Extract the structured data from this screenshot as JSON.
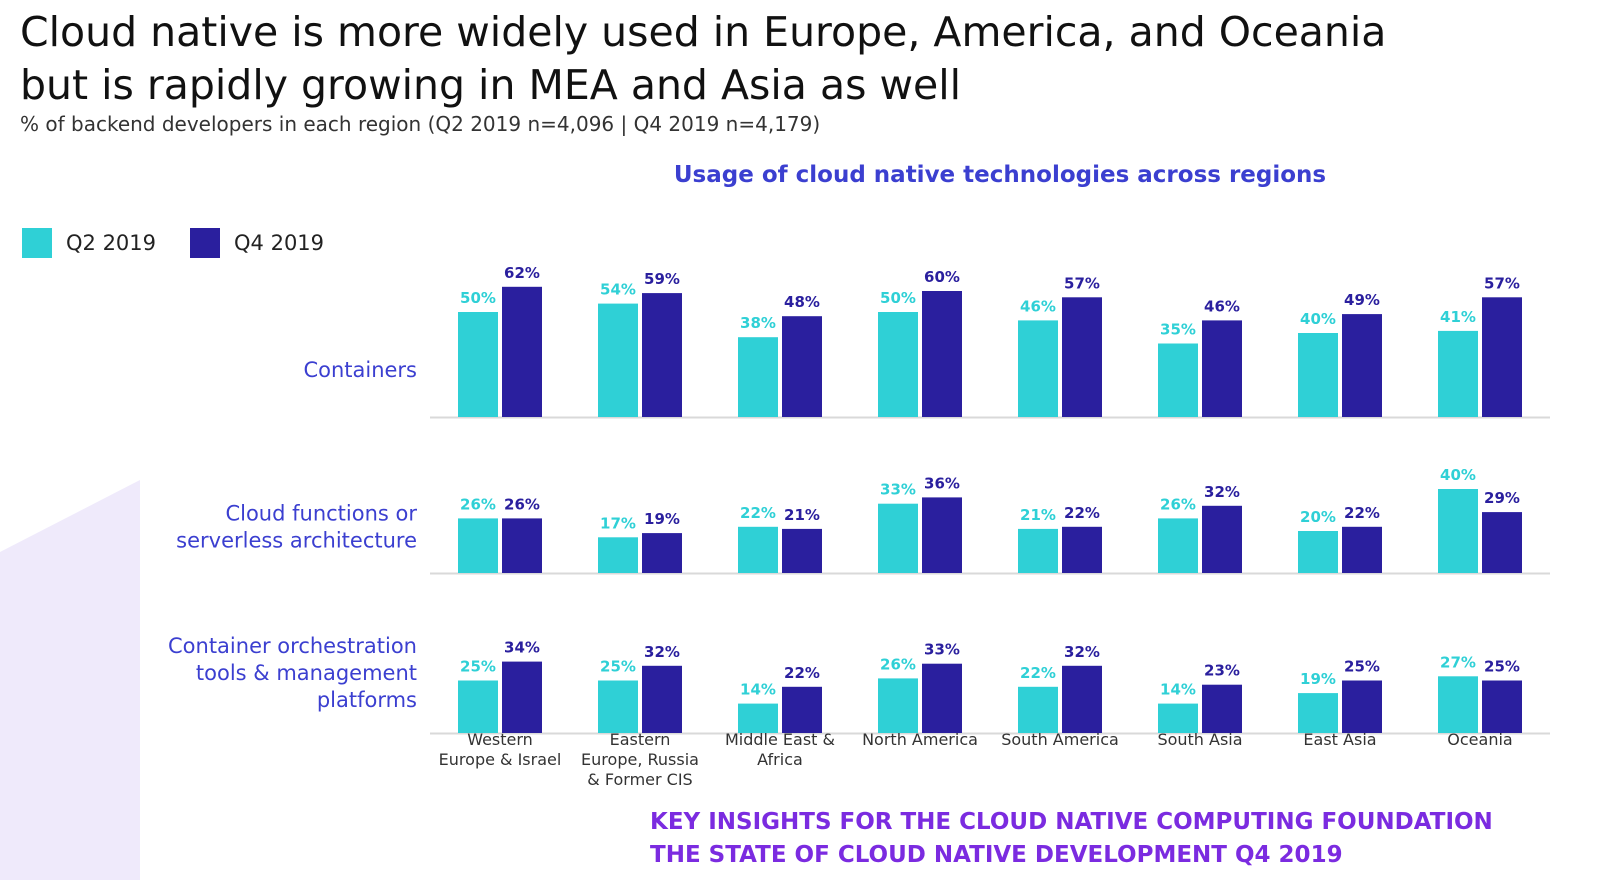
{
  "header": {
    "title_line1": "Cloud native is more widely used in Europe, America, and Oceania",
    "title_line2": "but is rapidly growing in MEA and Asia as well",
    "subtitle": "% of backend developers in each region (Q2 2019 n=4,096 | Q4 2019 n=4,179)"
  },
  "footer": {
    "line1": "KEY INSIGHTS FOR THE CLOUD NATIVE COMPUTING FOUNDATION",
    "line2": "THE STATE OF CLOUD NATIVE DEVELOPMENT Q4 2019"
  },
  "colors": {
    "q2": "#2fd0d6",
    "q4": "#2a1f9e",
    "label_q2": "#2fd0d6",
    "label_q4": "#2a1f9e"
  },
  "chart_data": {
    "type": "bar",
    "title": "Usage of cloud native technologies across regions",
    "legend": [
      "Q2 2019",
      "Q4 2019"
    ],
    "legend_position": "top-left",
    "categories": [
      [
        "Western",
        "Europe & Israel"
      ],
      [
        "Eastern",
        "Europe, Russia",
        "& Former CIS"
      ],
      [
        "Middle East &",
        "Africa"
      ],
      [
        "North America"
      ],
      [
        "South America"
      ],
      [
        "South Asia"
      ],
      [
        "East Asia"
      ],
      [
        "Oceania"
      ]
    ],
    "panels": [
      {
        "label": [
          "Containers"
        ],
        "series": [
          {
            "name": "Q2 2019",
            "values": [
              50,
              54,
              38,
              50,
              46,
              35,
              40,
              41
            ]
          },
          {
            "name": "Q4 2019",
            "values": [
              62,
              59,
              48,
              60,
              57,
              46,
              49,
              57
            ]
          }
        ]
      },
      {
        "label": [
          "Cloud functions or",
          "serverless architecture"
        ],
        "series": [
          {
            "name": "Q2 2019",
            "values": [
              26,
              17,
              22,
              33,
              21,
              26,
              20,
              40
            ]
          },
          {
            "name": "Q4 2019",
            "values": [
              26,
              19,
              21,
              36,
              22,
              32,
              22,
              29
            ]
          }
        ]
      },
      {
        "label": [
          "Container orchestration",
          "tools & management",
          "platforms"
        ],
        "series": [
          {
            "name": "Q2 2019",
            "values": [
              25,
              25,
              14,
              26,
              22,
              14,
              19,
              27
            ]
          },
          {
            "name": "Q4 2019",
            "values": [
              34,
              32,
              22,
              33,
              32,
              23,
              25,
              25
            ]
          }
        ]
      }
    ],
    "value_suffix": "%",
    "grid": false
  }
}
